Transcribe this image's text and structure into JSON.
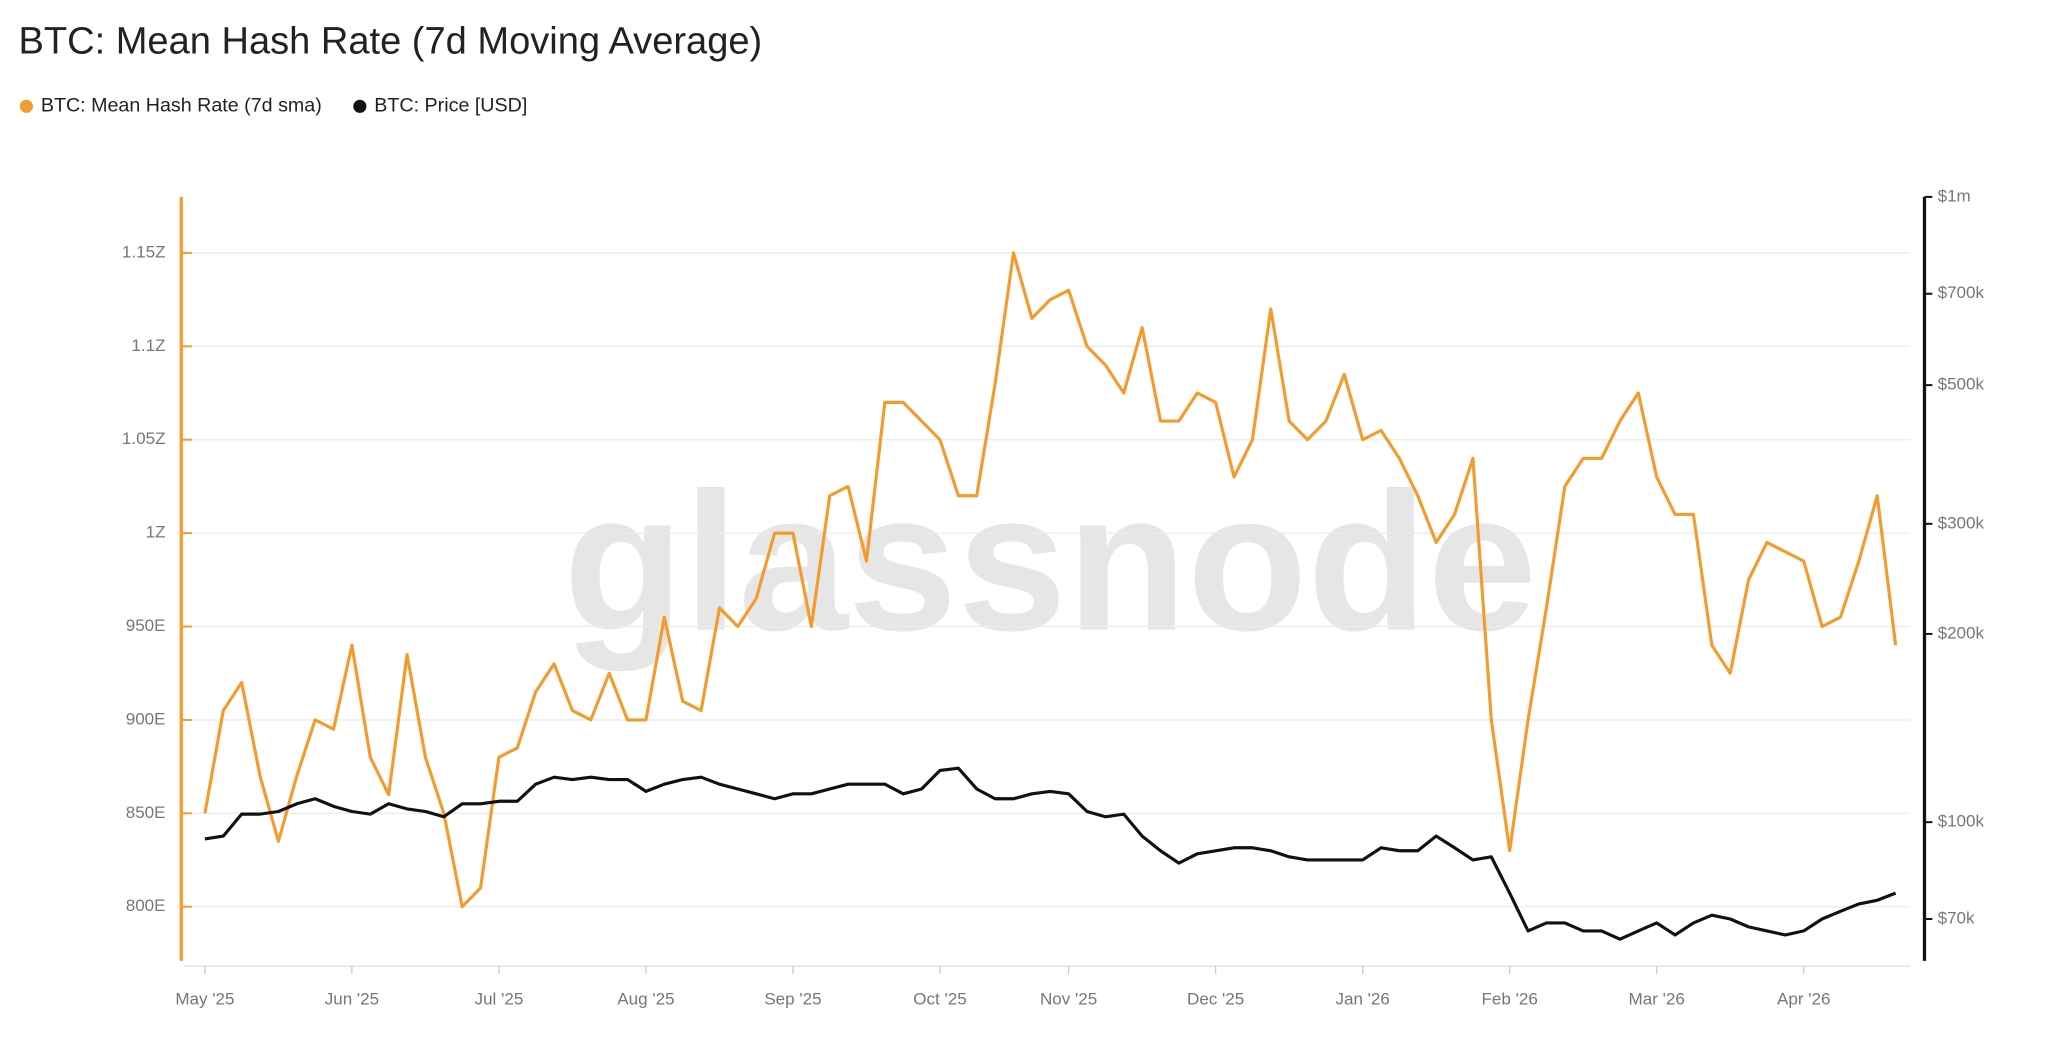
{
  "chart_data": {
    "type": "line",
    "title": "BTC: Mean Hash Rate (7d Moving Average)",
    "watermark": "glassnode",
    "legend": "top-left",
    "grid": true,
    "categories": [
      "May '25",
      null,
      null,
      null,
      null,
      null,
      null,
      null,
      "Jun '25",
      null,
      null,
      null,
      null,
      null,
      null,
      null,
      "Jul '25",
      null,
      null,
      null,
      null,
      null,
      null,
      null,
      "Aug '25",
      null,
      null,
      null,
      null,
      null,
      null,
      null,
      "Sep '25",
      null,
      null,
      null,
      null,
      null,
      null,
      null,
      "Oct '25",
      null,
      null,
      null,
      null,
      null,
      null,
      "Nov '25",
      null,
      null,
      null,
      null,
      null,
      null,
      null,
      "Dec '25",
      null,
      null,
      null,
      null,
      null,
      null,
      null,
      "Jan '26",
      null,
      null,
      null,
      null,
      null,
      null,
      null,
      "Feb '26",
      null,
      null,
      null,
      null,
      null,
      null,
      null,
      "Mar '26",
      null,
      null,
      null,
      null,
      null,
      null,
      null,
      "Apr '26",
      null,
      null,
      null,
      null,
      null
    ],
    "series": [
      {
        "name": "BTC: Mean Hash Rate (7d sma)",
        "color": "#f39b2c",
        "axis": "y",
        "values": [
          850,
          905,
          920,
          870,
          835,
          870,
          900,
          895,
          940,
          880,
          860,
          935,
          880,
          850,
          800,
          810,
          880,
          885,
          915,
          930,
          905,
          900,
          925,
          900,
          900,
          955,
          910,
          905,
          960,
          950,
          965,
          1000,
          1000,
          950,
          1020,
          1025,
          985,
          1070,
          1070,
          1060,
          1050,
          1020,
          1020,
          1080,
          1150,
          1115,
          1125,
          1130,
          1100,
          1090,
          1075,
          1110,
          1060,
          1060,
          1075,
          1070,
          1030,
          1050,
          1120,
          1060,
          1050,
          1060,
          1085,
          1050,
          1055,
          1040,
          1020,
          995,
          1010,
          1040,
          900,
          830,
          900,
          960,
          1025,
          1040,
          1040,
          1060,
          1075,
          1030,
          1010,
          1010,
          940,
          925,
          975,
          995,
          990,
          985,
          950,
          955,
          985,
          1020,
          940
        ]
      },
      {
        "name": "BTC: Price [USD]",
        "color": "#111111",
        "axis": "y2",
        "values": [
          94000,
          95000,
          103000,
          103000,
          104000,
          107000,
          109000,
          106000,
          104000,
          103000,
          107000,
          105000,
          104000,
          102000,
          107000,
          107000,
          108000,
          108000,
          115000,
          118000,
          117000,
          118000,
          117000,
          117000,
          112000,
          115000,
          117000,
          118000,
          115000,
          113000,
          111000,
          109000,
          111000,
          111000,
          113000,
          115000,
          115000,
          115000,
          111000,
          113000,
          121000,
          122000,
          113000,
          109000,
          109000,
          111000,
          112000,
          111000,
          104000,
          102000,
          103000,
          95000,
          90000,
          86000,
          89000,
          90000,
          91000,
          91000,
          90000,
          88000,
          87000,
          87000,
          87000,
          87000,
          91000,
          90000,
          90000,
          95000,
          91000,
          87000,
          88000,
          77000,
          67000,
          69000,
          69000,
          67000,
          67000,
          65000,
          67000,
          69000,
          66000,
          69000,
          71000,
          70000,
          68000,
          67000,
          66000,
          67000,
          70000,
          72000,
          74000,
          75000,
          77000
        ]
      }
    ],
    "ylim": [
      771,
      1180
    ],
    "yticks": [
      {
        "value": 800,
        "label": "800E"
      },
      {
        "value": 850,
        "label": "850E"
      },
      {
        "value": 900,
        "label": "900E"
      },
      {
        "value": 950,
        "label": "950E"
      },
      {
        "value": 1000,
        "label": "1Z"
      },
      {
        "value": 1050,
        "label": "1.05Z"
      },
      {
        "value": 1100,
        "label": "1.1Z"
      },
      {
        "value": 1150,
        "label": "1.15Z"
      }
    ],
    "y2scale": "log",
    "y2lim": [
      60000,
      1000000
    ],
    "y2ticks": [
      {
        "value": 70000,
        "label": "$70k"
      },
      {
        "value": 100000,
        "label": "$100k"
      },
      {
        "value": 200000,
        "label": "$200k"
      },
      {
        "value": 300000,
        "label": "$300k"
      },
      {
        "value": 500000,
        "label": "$500k"
      },
      {
        "value": 700000,
        "label": "$700k"
      },
      {
        "value": 1000000,
        "label": "$1m"
      }
    ]
  }
}
